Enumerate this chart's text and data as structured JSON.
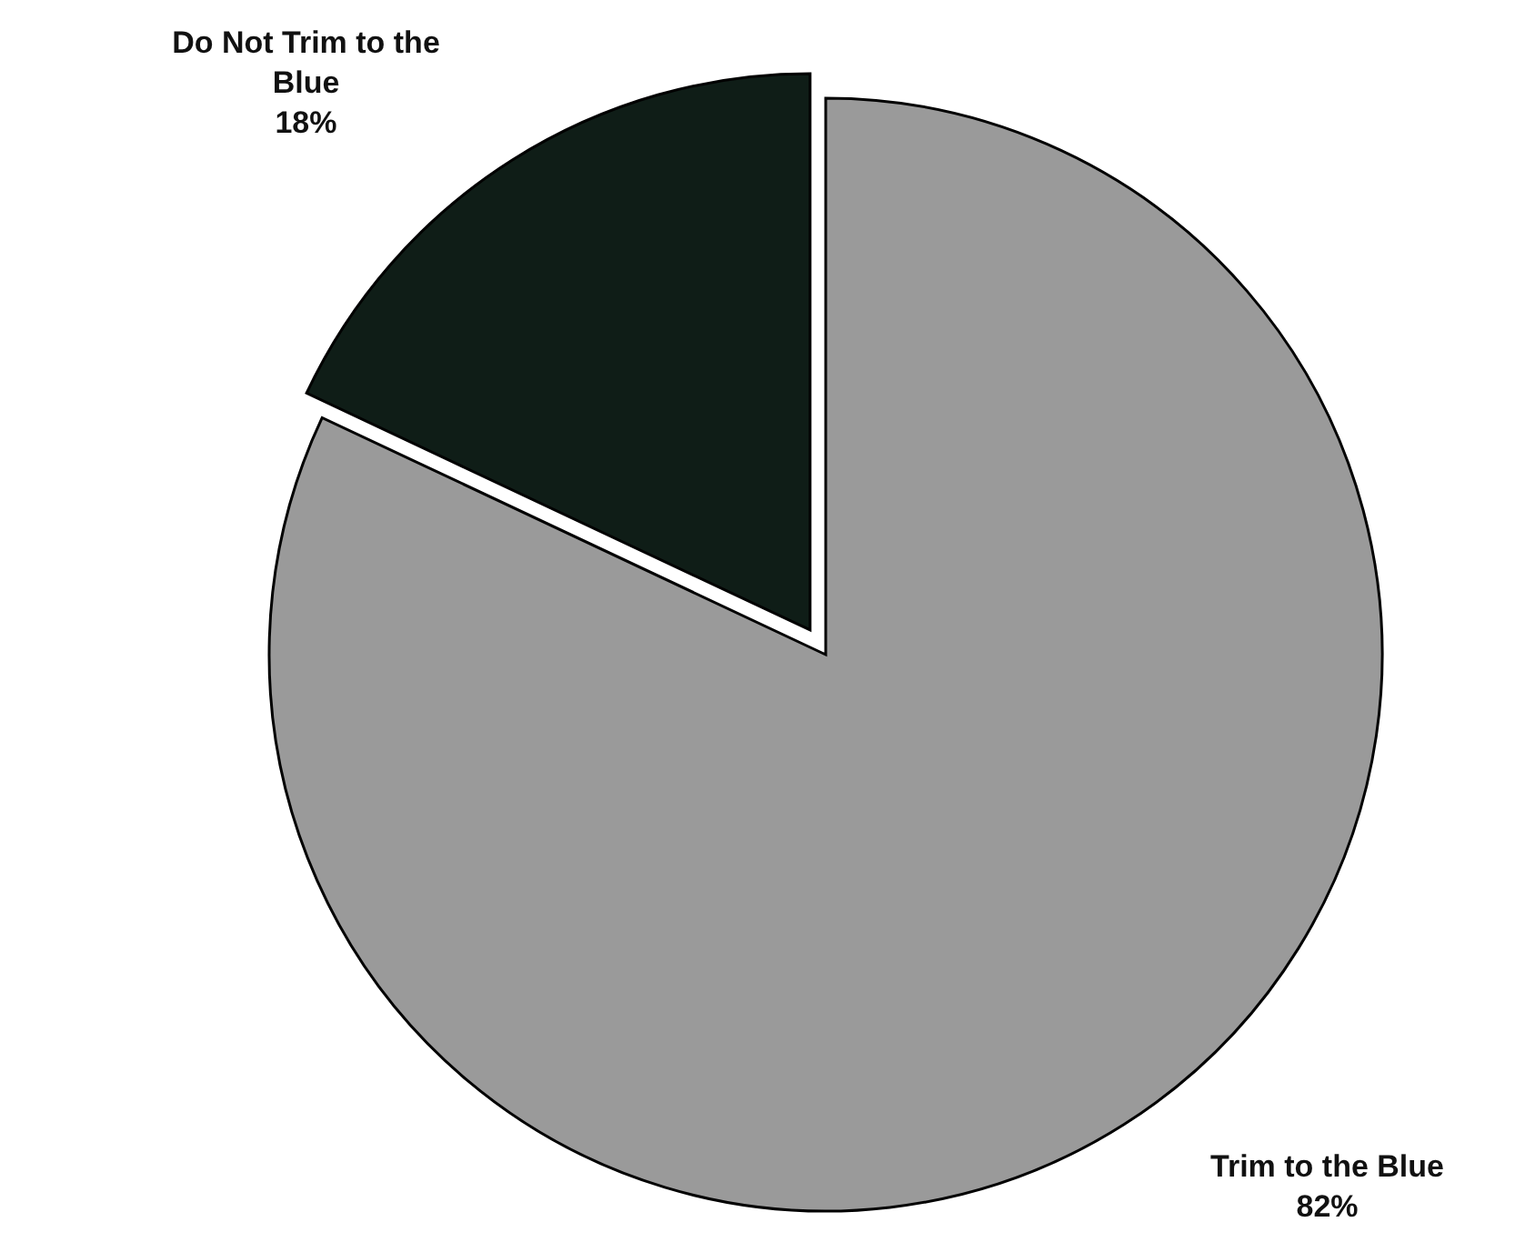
{
  "chart_data": {
    "type": "pie",
    "categories": [
      "Trim to the Blue",
      "Do Not Trim to the Blue"
    ],
    "values": [
      82,
      18
    ],
    "value_labels": [
      "82%",
      "18%"
    ],
    "colors": [
      "#9a9a9a",
      "#0f1d17"
    ]
  }
}
